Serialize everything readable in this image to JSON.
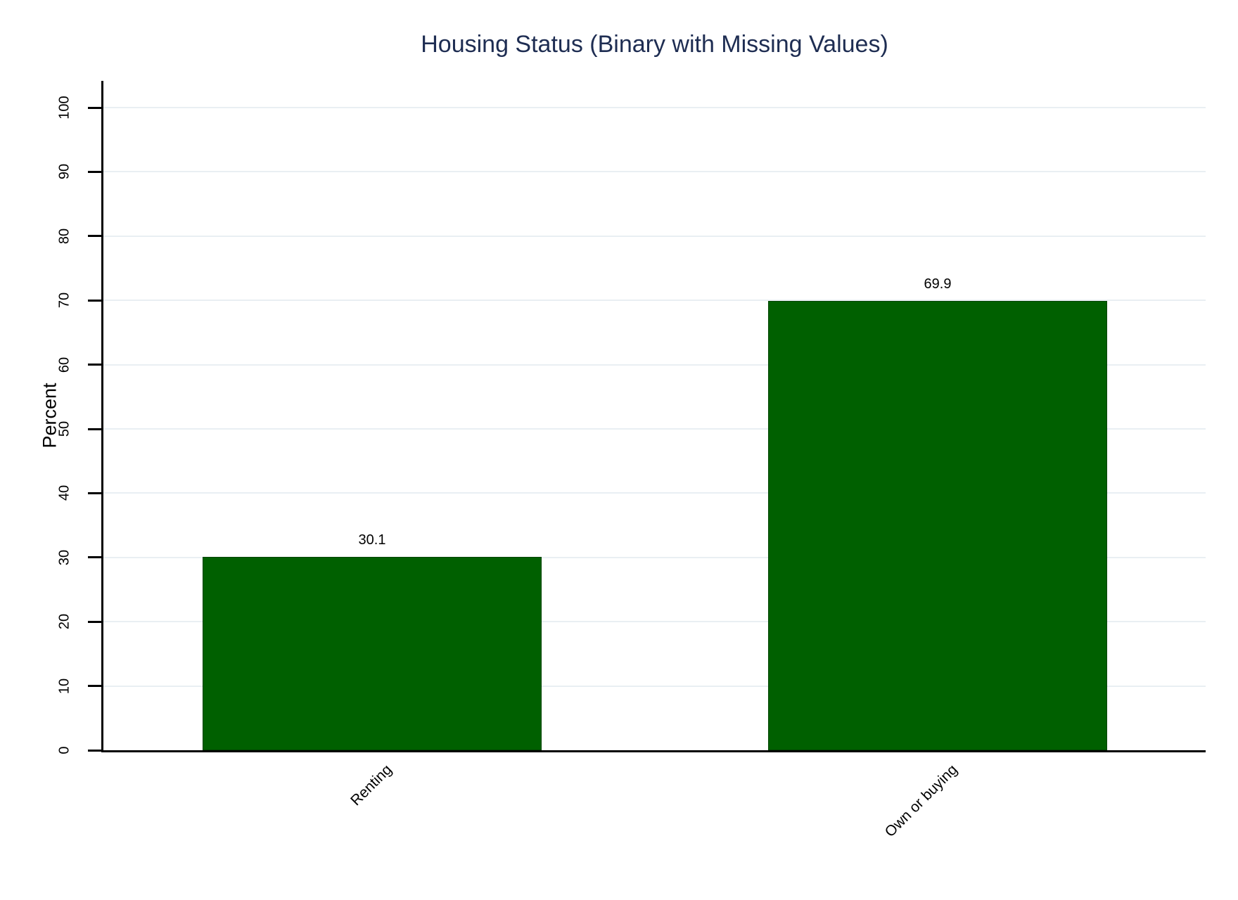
{
  "chart_data": {
    "type": "bar",
    "title": "Housing Status (Binary with Missing Values)",
    "categories": [
      "Renting",
      "Own or buying"
    ],
    "values": [
      30.1,
      69.9
    ],
    "bar_value_labels": [
      "30.1",
      "69.9"
    ],
    "xlabel": "",
    "ylabel": "Percent",
    "ylim": [
      0,
      100
    ],
    "yticks": [
      0,
      10,
      20,
      30,
      40,
      50,
      60,
      70,
      80,
      90,
      100
    ],
    "grid": "horizontal",
    "legend": "none",
    "colors": {
      "bar_fill": "#006000",
      "bar_outline": "#014401",
      "title_text": "#1e2d52",
      "axis_line": "#000000",
      "tick_text": "#000000",
      "gridline": "#e9eff3",
      "background": "#ffffff"
    }
  }
}
